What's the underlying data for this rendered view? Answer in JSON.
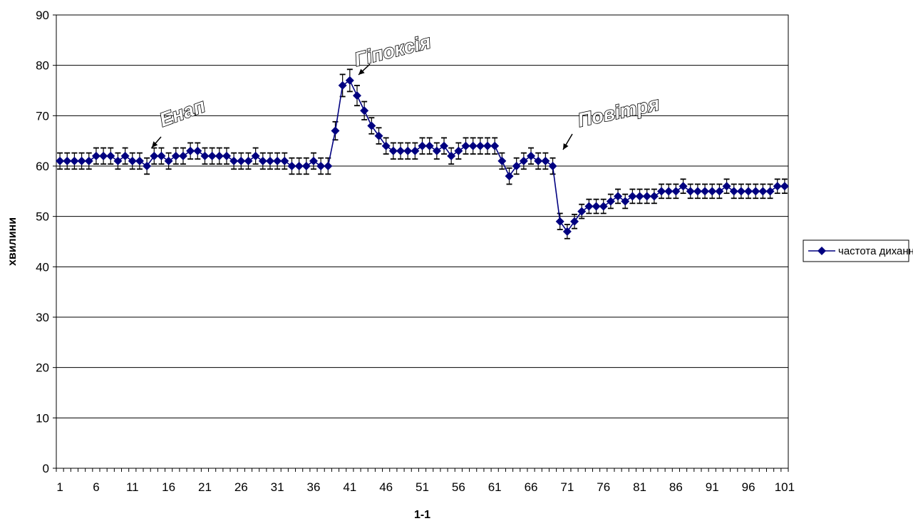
{
  "chart_data": {
    "type": "line",
    "title": "",
    "xlabel": "1-1",
    "ylabel": "хвилини",
    "ylim": [
      0,
      90
    ],
    "yticks": [
      "0",
      "10",
      "20",
      "30",
      "40",
      "50",
      "60",
      "70",
      "80",
      "90"
    ],
    "xlim": [
      1,
      101
    ],
    "xtick_labels": [
      "1",
      "6",
      "11",
      "16",
      "21",
      "26",
      "31",
      "36",
      "41",
      "46",
      "51",
      "56",
      "61",
      "66",
      "71",
      "76",
      "81",
      "86",
      "91",
      "96",
      "101"
    ],
    "grid": "horizontal major gridlines",
    "legend_position": "right",
    "series": [
      {
        "name": "частота дихання",
        "color": "#000080",
        "marker": "diamond",
        "x": [
          1,
          2,
          3,
          4,
          5,
          6,
          7,
          8,
          9,
          10,
          11,
          12,
          13,
          14,
          15,
          16,
          17,
          18,
          19,
          20,
          21,
          22,
          23,
          24,
          25,
          26,
          27,
          28,
          29,
          30,
          31,
          32,
          33,
          34,
          35,
          36,
          37,
          38,
          39,
          40,
          41,
          42,
          43,
          44,
          45,
          46,
          47,
          48,
          49,
          50,
          51,
          52,
          53,
          54,
          55,
          56,
          57,
          58,
          59,
          60,
          61,
          62,
          63,
          64,
          65,
          66,
          67,
          68,
          69,
          70,
          71,
          72,
          73,
          74,
          75,
          76,
          77,
          78,
          79,
          80,
          81,
          82,
          83,
          84,
          85,
          86,
          87,
          88,
          89,
          90,
          91,
          92,
          93,
          94,
          95,
          96,
          97,
          98,
          99,
          100,
          101
        ],
        "values": [
          61,
          61,
          61,
          61,
          61,
          62,
          62,
          62,
          61,
          62,
          61,
          61,
          60,
          62,
          62,
          61,
          62,
          62,
          63,
          63,
          62,
          62,
          62,
          62,
          61,
          61,
          61,
          62,
          61,
          61,
          61,
          61,
          60,
          60,
          60,
          61,
          60,
          60,
          67,
          76,
          77,
          74,
          71,
          68,
          66,
          64,
          63,
          63,
          63,
          63,
          64,
          64,
          63,
          64,
          62,
          63,
          64,
          64,
          64,
          64,
          64,
          61,
          58,
          60,
          61,
          62,
          61,
          61,
          60,
          49,
          47,
          49,
          51,
          52,
          52,
          52,
          53,
          54,
          53,
          54,
          54,
          54,
          54,
          55,
          55,
          55,
          56,
          55,
          55,
          55,
          55,
          55,
          56,
          55,
          55,
          55,
          55,
          55,
          55,
          56,
          56
        ],
        "error": [
          1.6,
          1.6,
          1.6,
          1.6,
          1.6,
          1.6,
          1.6,
          1.6,
          1.6,
          1.6,
          1.6,
          1.6,
          1.6,
          1.6,
          1.6,
          1.6,
          1.6,
          1.6,
          1.6,
          1.6,
          1.6,
          1.6,
          1.6,
          1.6,
          1.6,
          1.6,
          1.6,
          1.6,
          1.6,
          1.6,
          1.6,
          1.6,
          1.6,
          1.6,
          1.6,
          1.6,
          1.6,
          1.6,
          1.8,
          2.2,
          2.2,
          2.0,
          1.8,
          1.6,
          1.6,
          1.6,
          1.6,
          1.6,
          1.6,
          1.6,
          1.6,
          1.6,
          1.6,
          1.6,
          1.6,
          1.6,
          1.6,
          1.6,
          1.6,
          1.6,
          1.6,
          1.6,
          1.6,
          1.6,
          1.6,
          1.6,
          1.6,
          1.6,
          1.6,
          1.6,
          1.4,
          1.4,
          1.4,
          1.4,
          1.4,
          1.4,
          1.4,
          1.4,
          1.4,
          1.4,
          1.4,
          1.4,
          1.4,
          1.4,
          1.4,
          1.4,
          1.4,
          1.4,
          1.4,
          1.4,
          1.4,
          1.4,
          1.4,
          1.4,
          1.4,
          1.4,
          1.4,
          1.4,
          1.4,
          1.4,
          1.4
        ]
      }
    ],
    "annotations": [
      {
        "text": "Енап",
        "x": 13.5,
        "y": 60
      },
      {
        "text": "Гіпоксія",
        "x": 41,
        "y": 77
      },
      {
        "text": "Повітря",
        "x": 70,
        "y": 60
      }
    ]
  }
}
